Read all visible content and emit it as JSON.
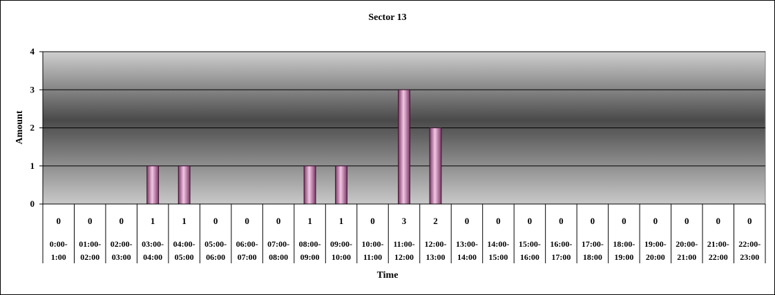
{
  "chart_data": {
    "type": "bar",
    "title": "Sector 13",
    "xlabel": "Time",
    "ylabel": "Amount",
    "ylim": [
      0,
      4
    ],
    "yticks": [
      0,
      1,
      2,
      3,
      4
    ],
    "grid": true,
    "categories": [
      "0:00-1:00",
      "01:00-02:00",
      "02:00-03:00",
      "03:00-04:00",
      "04:00-05:00",
      "05:00-06:00",
      "06:00-07:00",
      "07:00-08:00",
      "08:00-09:00",
      "09:00-10:00",
      "10:00-11:00",
      "11:00-12:00",
      "12:00-13:00",
      "13:00-14:00",
      "14:00-15:00",
      "15:00-16:00",
      "16:00-17:00",
      "17:00-18:00",
      "18:00-19:00",
      "19:00-20:00",
      "20:00-21:00",
      "21:00-22:00",
      "22:00-23:00"
    ],
    "values": [
      0,
      0,
      0,
      1,
      1,
      0,
      0,
      0,
      1,
      1,
      0,
      3,
      2,
      0,
      0,
      0,
      0,
      0,
      0,
      0,
      0,
      0,
      0
    ],
    "data_table": true,
    "colors": {
      "bar": "#e89ac8",
      "bar_edge": "#3a1030"
    }
  }
}
